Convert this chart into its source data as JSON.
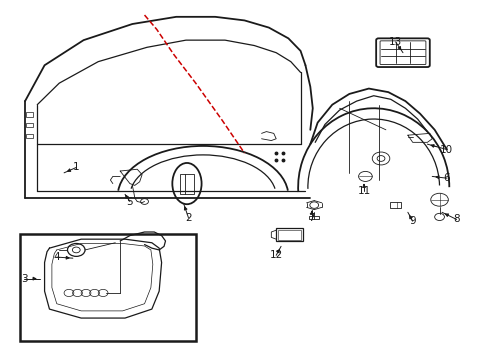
{
  "bg_color": "#ffffff",
  "line_color": "#1a1a1a",
  "red_color": "#cc0000",
  "figsize": [
    4.89,
    3.6
  ],
  "dpi": 100,
  "arrow_data": {
    "1": {
      "lpos": [
        0.155,
        0.535
      ],
      "tpos": [
        0.13,
        0.52
      ]
    },
    "2": {
      "lpos": [
        0.385,
        0.395
      ],
      "tpos": [
        0.375,
        0.435
      ]
    },
    "3": {
      "lpos": [
        0.048,
        0.225
      ],
      "tpos": [
        0.08,
        0.225
      ]
    },
    "4": {
      "lpos": [
        0.115,
        0.285
      ],
      "tpos": [
        0.148,
        0.282
      ]
    },
    "5": {
      "lpos": [
        0.265,
        0.44
      ],
      "tpos": [
        0.255,
        0.46
      ]
    },
    "6": {
      "lpos": [
        0.915,
        0.505
      ],
      "tpos": [
        0.885,
        0.51
      ]
    },
    "7": {
      "lpos": [
        0.638,
        0.395
      ],
      "tpos": [
        0.638,
        0.415
      ]
    },
    "8": {
      "lpos": [
        0.935,
        0.39
      ],
      "tpos": [
        0.905,
        0.41
      ]
    },
    "9": {
      "lpos": [
        0.845,
        0.385
      ],
      "tpos": [
        0.835,
        0.41
      ]
    },
    "10": {
      "lpos": [
        0.915,
        0.585
      ],
      "tpos": [
        0.875,
        0.6
      ]
    },
    "11": {
      "lpos": [
        0.745,
        0.47
      ],
      "tpos": [
        0.745,
        0.49
      ]
    },
    "12": {
      "lpos": [
        0.565,
        0.29
      ],
      "tpos": [
        0.575,
        0.315
      ]
    },
    "13": {
      "lpos": [
        0.81,
        0.885
      ],
      "tpos": [
        0.825,
        0.855
      ]
    }
  }
}
